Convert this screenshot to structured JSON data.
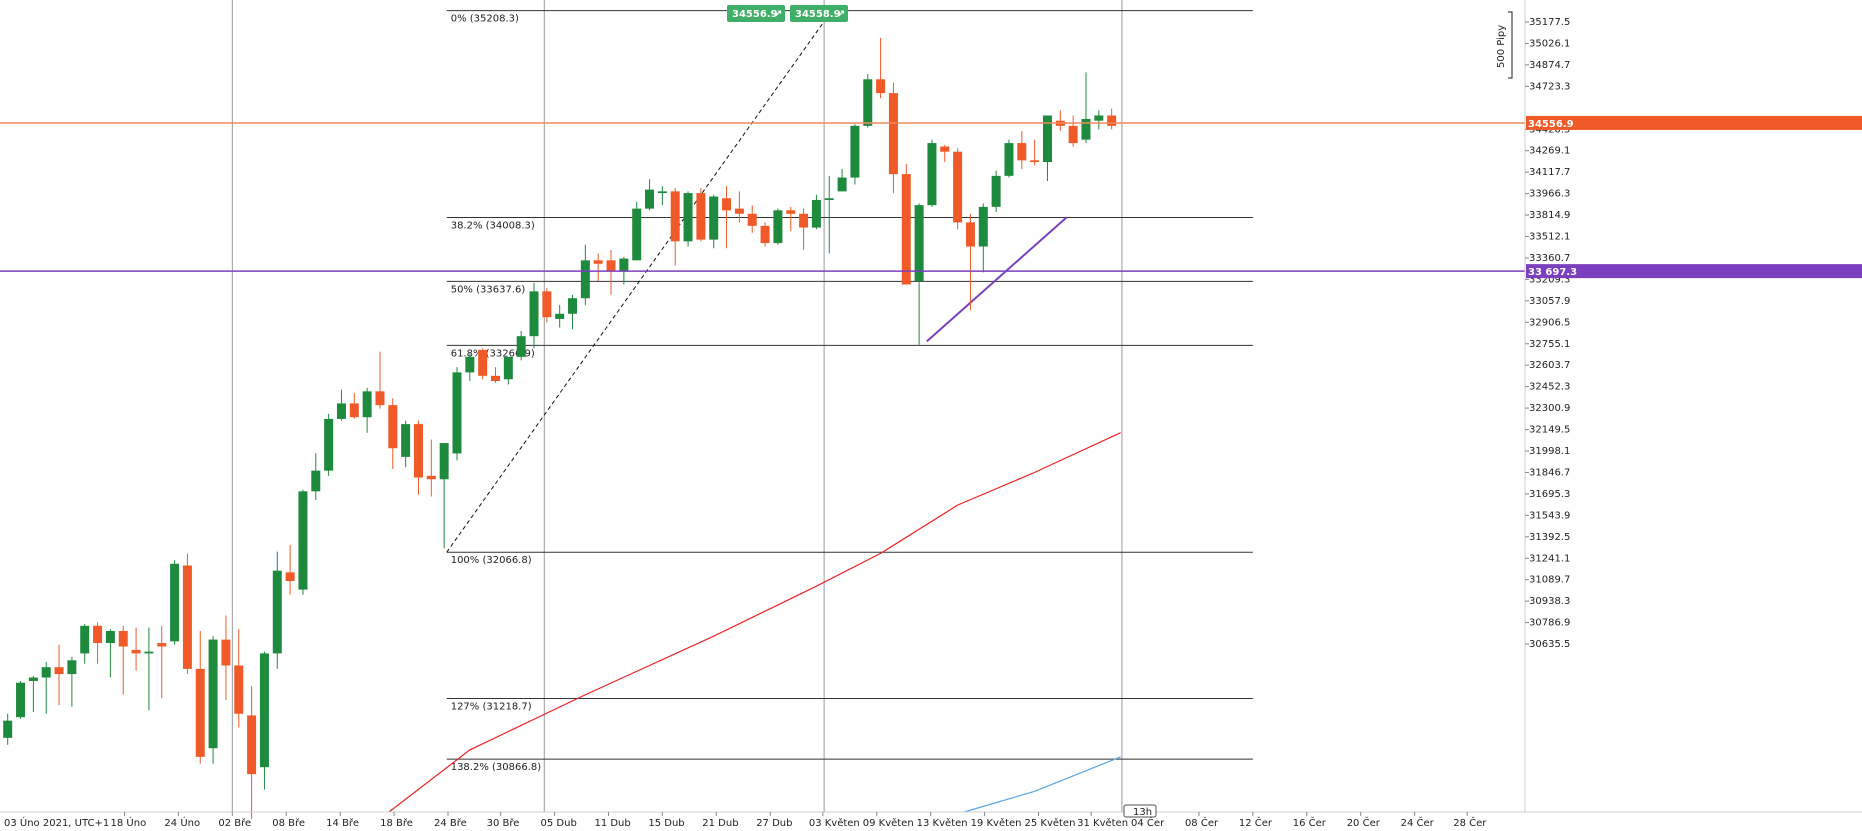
{
  "chart_data": {
    "type": "candlestick",
    "timezone_label": "03 Úno 2021, UTC+1",
    "y_ticks": [
      "35177.5",
      "35026.1",
      "34874.7",
      "34723.3",
      "34420.5",
      "34269.1",
      "34117.7",
      "33966.3",
      "33814.9",
      "33512.1",
      "33360.7",
      "33209.3",
      "33057.9",
      "32906.5",
      "32755.1",
      "32603.7",
      "32452.3",
      "32300.9",
      "32149.5",
      "31998.1",
      "31846.7",
      "31695.3",
      "31543.9",
      "31392.5",
      "31241.1",
      "31089.7",
      "30938.3",
      "30786.9",
      "30635.5"
    ],
    "x_ticks": [
      {
        "label": "18 Úno",
        "i": 9.1
      },
      {
        "label": "24 Úno",
        "i": 13.3
      },
      {
        "label": "02 Bře",
        "i": 17.5
      },
      {
        "label": "08 Bře",
        "i": 21.7
      },
      {
        "label": "14 Bře",
        "i": 25.9
      },
      {
        "label": "18 Bře",
        "i": 30.1
      },
      {
        "label": "24 Bře",
        "i": 34.3
      },
      {
        "label": "30 Bře",
        "i": 38.4
      },
      {
        "label": "05 Dub",
        "i": 42.6
      },
      {
        "label": "11 Dub",
        "i": 46.8
      },
      {
        "label": "15 Dub",
        "i": 51.0
      },
      {
        "label": "21 Dub",
        "i": 55.2
      },
      {
        "label": "27 Dub",
        "i": 59.4
      },
      {
        "label": "03 Květen",
        "i": 63.5
      },
      {
        "label": "09 Květen",
        "i": 67.7
      },
      {
        "label": "13 Květen",
        "i": 71.9
      },
      {
        "label": "19 Květen",
        "i": 76.1
      },
      {
        "label": "25 Květen",
        "i": 80.3
      },
      {
        "label": "31 Květen",
        "i": 84.4
      },
      {
        "label": "04 Čer",
        "i": 88.6
      },
      {
        "label": "08 Čer",
        "i": 92.8
      },
      {
        "label": "12 Čer",
        "i": 97.0
      },
      {
        "label": "16 Čer",
        "i": 101.2
      },
      {
        "label": "20 Čer",
        "i": 105.4
      },
      {
        "label": "24 Čer",
        "i": 109.6
      },
      {
        "label": "28 Čer",
        "i": 113.7
      }
    ],
    "ylim": [
      30560,
      35270
    ],
    "x_index_range": [
      -0.6,
      118.2
    ],
    "vertical_separators_i": [
      17.5,
      41.8,
      63.6,
      86.8
    ],
    "candles": [
      {
        "o": 30990,
        "h": 31130,
        "l": 30950,
        "c": 31090
      },
      {
        "o": 31110,
        "h": 31320,
        "l": 31100,
        "c": 31310
      },
      {
        "o": 31320,
        "h": 31350,
        "l": 31140,
        "c": 31340
      },
      {
        "o": 31340,
        "h": 31430,
        "l": 31130,
        "c": 31400
      },
      {
        "o": 31400,
        "h": 31530,
        "l": 31180,
        "c": 31360
      },
      {
        "o": 31360,
        "h": 31460,
        "l": 31170,
        "c": 31440
      },
      {
        "o": 31480,
        "h": 31650,
        "l": 31420,
        "c": 31640
      },
      {
        "o": 31640,
        "h": 31660,
        "l": 31420,
        "c": 31540
      },
      {
        "o": 31540,
        "h": 31620,
        "l": 31340,
        "c": 31610
      },
      {
        "o": 31610,
        "h": 31640,
        "l": 31240,
        "c": 31520
      },
      {
        "o": 31500,
        "h": 31630,
        "l": 31380,
        "c": 31480
      },
      {
        "o": 31480,
        "h": 31630,
        "l": 31150,
        "c": 31490
      },
      {
        "o": 31540,
        "h": 31640,
        "l": 31220,
        "c": 31520
      },
      {
        "o": 31550,
        "h": 32020,
        "l": 31530,
        "c": 32000
      },
      {
        "o": 31990,
        "h": 32060,
        "l": 31360,
        "c": 31390
      },
      {
        "o": 31390,
        "h": 31610,
        "l": 30840,
        "c": 30880
      },
      {
        "o": 30930,
        "h": 31580,
        "l": 30840,
        "c": 31560
      },
      {
        "o": 31560,
        "h": 31700,
        "l": 31210,
        "c": 31410
      },
      {
        "o": 31410,
        "h": 31620,
        "l": 31050,
        "c": 31130
      },
      {
        "o": 31120,
        "h": 31290,
        "l": 30520,
        "c": 30780
      },
      {
        "o": 30820,
        "h": 31490,
        "l": 30690,
        "c": 31480
      },
      {
        "o": 31480,
        "h": 32070,
        "l": 31390,
        "c": 31960
      },
      {
        "o": 31950,
        "h": 32110,
        "l": 31820,
        "c": 31900
      },
      {
        "o": 31850,
        "h": 32430,
        "l": 31820,
        "c": 32420
      },
      {
        "o": 32420,
        "h": 32640,
        "l": 32370,
        "c": 32540
      },
      {
        "o": 32540,
        "h": 32870,
        "l": 32510,
        "c": 32840
      },
      {
        "o": 32840,
        "h": 33010,
        "l": 32830,
        "c": 32930
      },
      {
        "o": 32930,
        "h": 32990,
        "l": 32840,
        "c": 32850
      },
      {
        "o": 32850,
        "h": 33020,
        "l": 32760,
        "c": 33000
      },
      {
        "o": 33000,
        "h": 33230,
        "l": 32900,
        "c": 32920
      },
      {
        "o": 32920,
        "h": 32960,
        "l": 32550,
        "c": 32670
      },
      {
        "o": 32620,
        "h": 32830,
        "l": 32560,
        "c": 32810
      },
      {
        "o": 32810,
        "h": 32830,
        "l": 32400,
        "c": 32500
      },
      {
        "o": 32510,
        "h": 32720,
        "l": 32390,
        "c": 32490
      },
      {
        "o": 32490,
        "h": 32700,
        "l": 32090,
        "c": 32700
      },
      {
        "o": 32640,
        "h": 33140,
        "l": 32600,
        "c": 33110
      },
      {
        "o": 33110,
        "h": 33220,
        "l": 33060,
        "c": 33200
      },
      {
        "o": 33240,
        "h": 33250,
        "l": 33070,
        "c": 33090
      },
      {
        "o": 33090,
        "h": 33140,
        "l": 33050,
        "c": 33060
      },
      {
        "o": 33070,
        "h": 33200,
        "l": 33040,
        "c": 33200
      },
      {
        "o": 33200,
        "h": 33350,
        "l": 33180,
        "c": 33320
      },
      {
        "o": 33320,
        "h": 33630,
        "l": 33250,
        "c": 33580
      },
      {
        "o": 33580,
        "h": 33600,
        "l": 33400,
        "c": 33430
      },
      {
        "o": 33420,
        "h": 33500,
        "l": 33370,
        "c": 33450
      },
      {
        "o": 33450,
        "h": 33560,
        "l": 33360,
        "c": 33540
      },
      {
        "o": 33540,
        "h": 33850,
        "l": 33500,
        "c": 33760
      },
      {
        "o": 33760,
        "h": 33800,
        "l": 33640,
        "c": 33740
      },
      {
        "o": 33760,
        "h": 33820,
        "l": 33560,
        "c": 33700
      },
      {
        "o": 33700,
        "h": 33780,
        "l": 33620,
        "c": 33770
      },
      {
        "o": 33760,
        "h": 34100,
        "l": 33760,
        "c": 34060
      },
      {
        "o": 34060,
        "h": 34230,
        "l": 34050,
        "c": 34170
      },
      {
        "o": 34150,
        "h": 34190,
        "l": 34080,
        "c": 34160
      },
      {
        "o": 34160,
        "h": 34180,
        "l": 33730,
        "c": 33870
      },
      {
        "o": 33870,
        "h": 34160,
        "l": 33840,
        "c": 34150
      },
      {
        "o": 34150,
        "h": 34180,
        "l": 33870,
        "c": 33880
      },
      {
        "o": 33880,
        "h": 34140,
        "l": 33830,
        "c": 34130
      },
      {
        "o": 34120,
        "h": 34190,
        "l": 33830,
        "c": 34050
      },
      {
        "o": 34060,
        "h": 34160,
        "l": 33980,
        "c": 34030
      },
      {
        "o": 34030,
        "h": 34080,
        "l": 33920,
        "c": 33960
      },
      {
        "o": 33960,
        "h": 33980,
        "l": 33840,
        "c": 33860
      },
      {
        "o": 33860,
        "h": 34060,
        "l": 33850,
        "c": 34050
      },
      {
        "o": 34050,
        "h": 34070,
        "l": 33930,
        "c": 34030
      },
      {
        "o": 34030,
        "h": 34060,
        "l": 33820,
        "c": 33950
      },
      {
        "o": 33950,
        "h": 34140,
        "l": 33940,
        "c": 34110
      },
      {
        "o": 34110,
        "h": 34250,
        "l": 33800,
        "c": 34120
      },
      {
        "o": 34160,
        "h": 34290,
        "l": 34160,
        "c": 34240
      },
      {
        "o": 34240,
        "h": 34550,
        "l": 34200,
        "c": 34540
      },
      {
        "o": 34540,
        "h": 34840,
        "l": 34530,
        "c": 34810
      },
      {
        "o": 34810,
        "h": 35050,
        "l": 34700,
        "c": 34730
      },
      {
        "o": 34730,
        "h": 34790,
        "l": 34150,
        "c": 34260
      },
      {
        "o": 34260,
        "h": 34320,
        "l": 33620,
        "c": 33620
      },
      {
        "o": 33640,
        "h": 34090,
        "l": 33270,
        "c": 34080
      },
      {
        "o": 34080,
        "h": 34460,
        "l": 34070,
        "c": 34440
      },
      {
        "o": 34420,
        "h": 34430,
        "l": 34330,
        "c": 34390
      },
      {
        "o": 34390,
        "h": 34410,
        "l": 33940,
        "c": 33980
      },
      {
        "o": 33980,
        "h": 34030,
        "l": 33470,
        "c": 33840
      },
      {
        "o": 33840,
        "h": 34090,
        "l": 33690,
        "c": 34070
      },
      {
        "o": 34070,
        "h": 34280,
        "l": 34040,
        "c": 34250
      },
      {
        "o": 34250,
        "h": 34460,
        "l": 34240,
        "c": 34440
      },
      {
        "o": 34440,
        "h": 34510,
        "l": 34290,
        "c": 34340
      },
      {
        "o": 34340,
        "h": 34460,
        "l": 34310,
        "c": 34330
      },
      {
        "o": 34330,
        "h": 34600,
        "l": 34220,
        "c": 34600
      },
      {
        "o": 34570,
        "h": 34630,
        "l": 34510,
        "c": 34540
      },
      {
        "o": 34540,
        "h": 34600,
        "l": 34420,
        "c": 34440
      },
      {
        "o": 34460,
        "h": 34850,
        "l": 34440,
        "c": 34580
      },
      {
        "o": 34570,
        "h": 34630,
        "l": 34520,
        "c": 34600
      },
      {
        "o": 34600,
        "h": 34640,
        "l": 34520,
        "c": 34540
      }
    ],
    "fibonacci": {
      "x_start_i": 34.2,
      "x_end_i": 97.0,
      "levels": [
        {
          "label": "0% (35208.3)",
          "value": 35208.3
        },
        {
          "label": "38.2% (34008.3)",
          "value": 34008.3
        },
        {
          "label": "50% (33637.6)",
          "value": 33637.6
        },
        {
          "label": "61.8% (33266.9)",
          "value": 33266.9
        },
        {
          "label": "100% (32066.8)",
          "value": 32066.8
        },
        {
          "label": "127% (31218.7)",
          "value": 31218.7
        },
        {
          "label": "138.2% (30866.8)",
          "value": 30866.8
        }
      ]
    },
    "dashed_trend": {
      "from": {
        "i": 34.2,
        "v": 32066.8
      },
      "to": {
        "i": 64.2,
        "v": 35208.3
      }
    },
    "purple_trend": {
      "from": {
        "i": 71.6,
        "v": 33290
      },
      "to": {
        "i": 82.5,
        "v": 34010
      }
    },
    "red_ma": [
      {
        "i": 29.7,
        "v": 30560
      },
      {
        "i": 36,
        "v": 30920
      },
      {
        "i": 45,
        "v": 31240
      },
      {
        "i": 55,
        "v": 31580
      },
      {
        "i": 63,
        "v": 31870
      },
      {
        "i": 68,
        "v": 32060
      },
      {
        "i": 74,
        "v": 32340
      },
      {
        "i": 80,
        "v": 32530
      },
      {
        "i": 86.7,
        "v": 32760
      }
    ],
    "blue_ma": [
      {
        "i": 74.5,
        "v": 30560
      },
      {
        "i": 80,
        "v": 30680
      },
      {
        "i": 86.7,
        "v": 30880
      }
    ],
    "horizontal_lines": [
      {
        "value": 34556.9,
        "color": "#f08a5d",
        "label": "34556.9",
        "tag_color": "#f05a28"
      },
      {
        "value": 33697.3,
        "color": "#7b3fbf",
        "label": "33 697.3",
        "tag_color": "#7b3fbf"
      }
    ],
    "top_pills": [
      "34556.9",
      "34558.9"
    ],
    "scale_label": "500 Pipy",
    "bottom_marker": "13h"
  }
}
